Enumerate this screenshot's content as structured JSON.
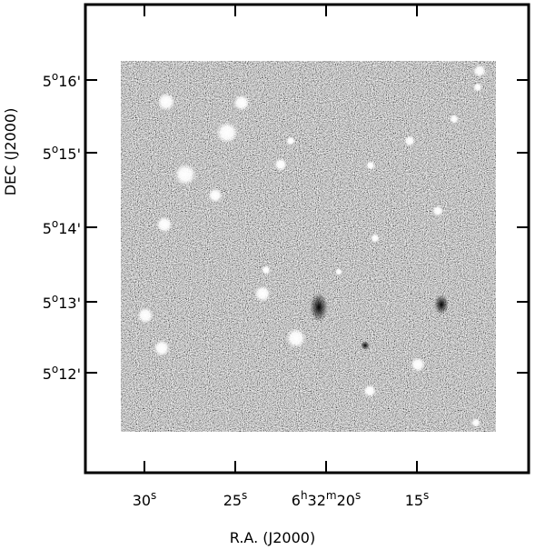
{
  "axes": {
    "x_label": "R.A. (J2000)",
    "y_label": "DEC (J2000)",
    "x_ticks": [
      [
        "30",
        "s"
      ],
      [
        "25",
        "s"
      ],
      [
        "6",
        "h",
        "32",
        "m",
        "20",
        "s"
      ],
      [
        "15",
        "s"
      ]
    ],
    "y_ticks": [
      [
        "5",
        "o",
        "16'"
      ],
      [
        "5",
        "o",
        "15'"
      ],
      [
        "5",
        "o",
        "14'"
      ],
      [
        "5",
        "o",
        "13'"
      ],
      [
        "5",
        "o",
        "12'"
      ]
    ]
  }
}
